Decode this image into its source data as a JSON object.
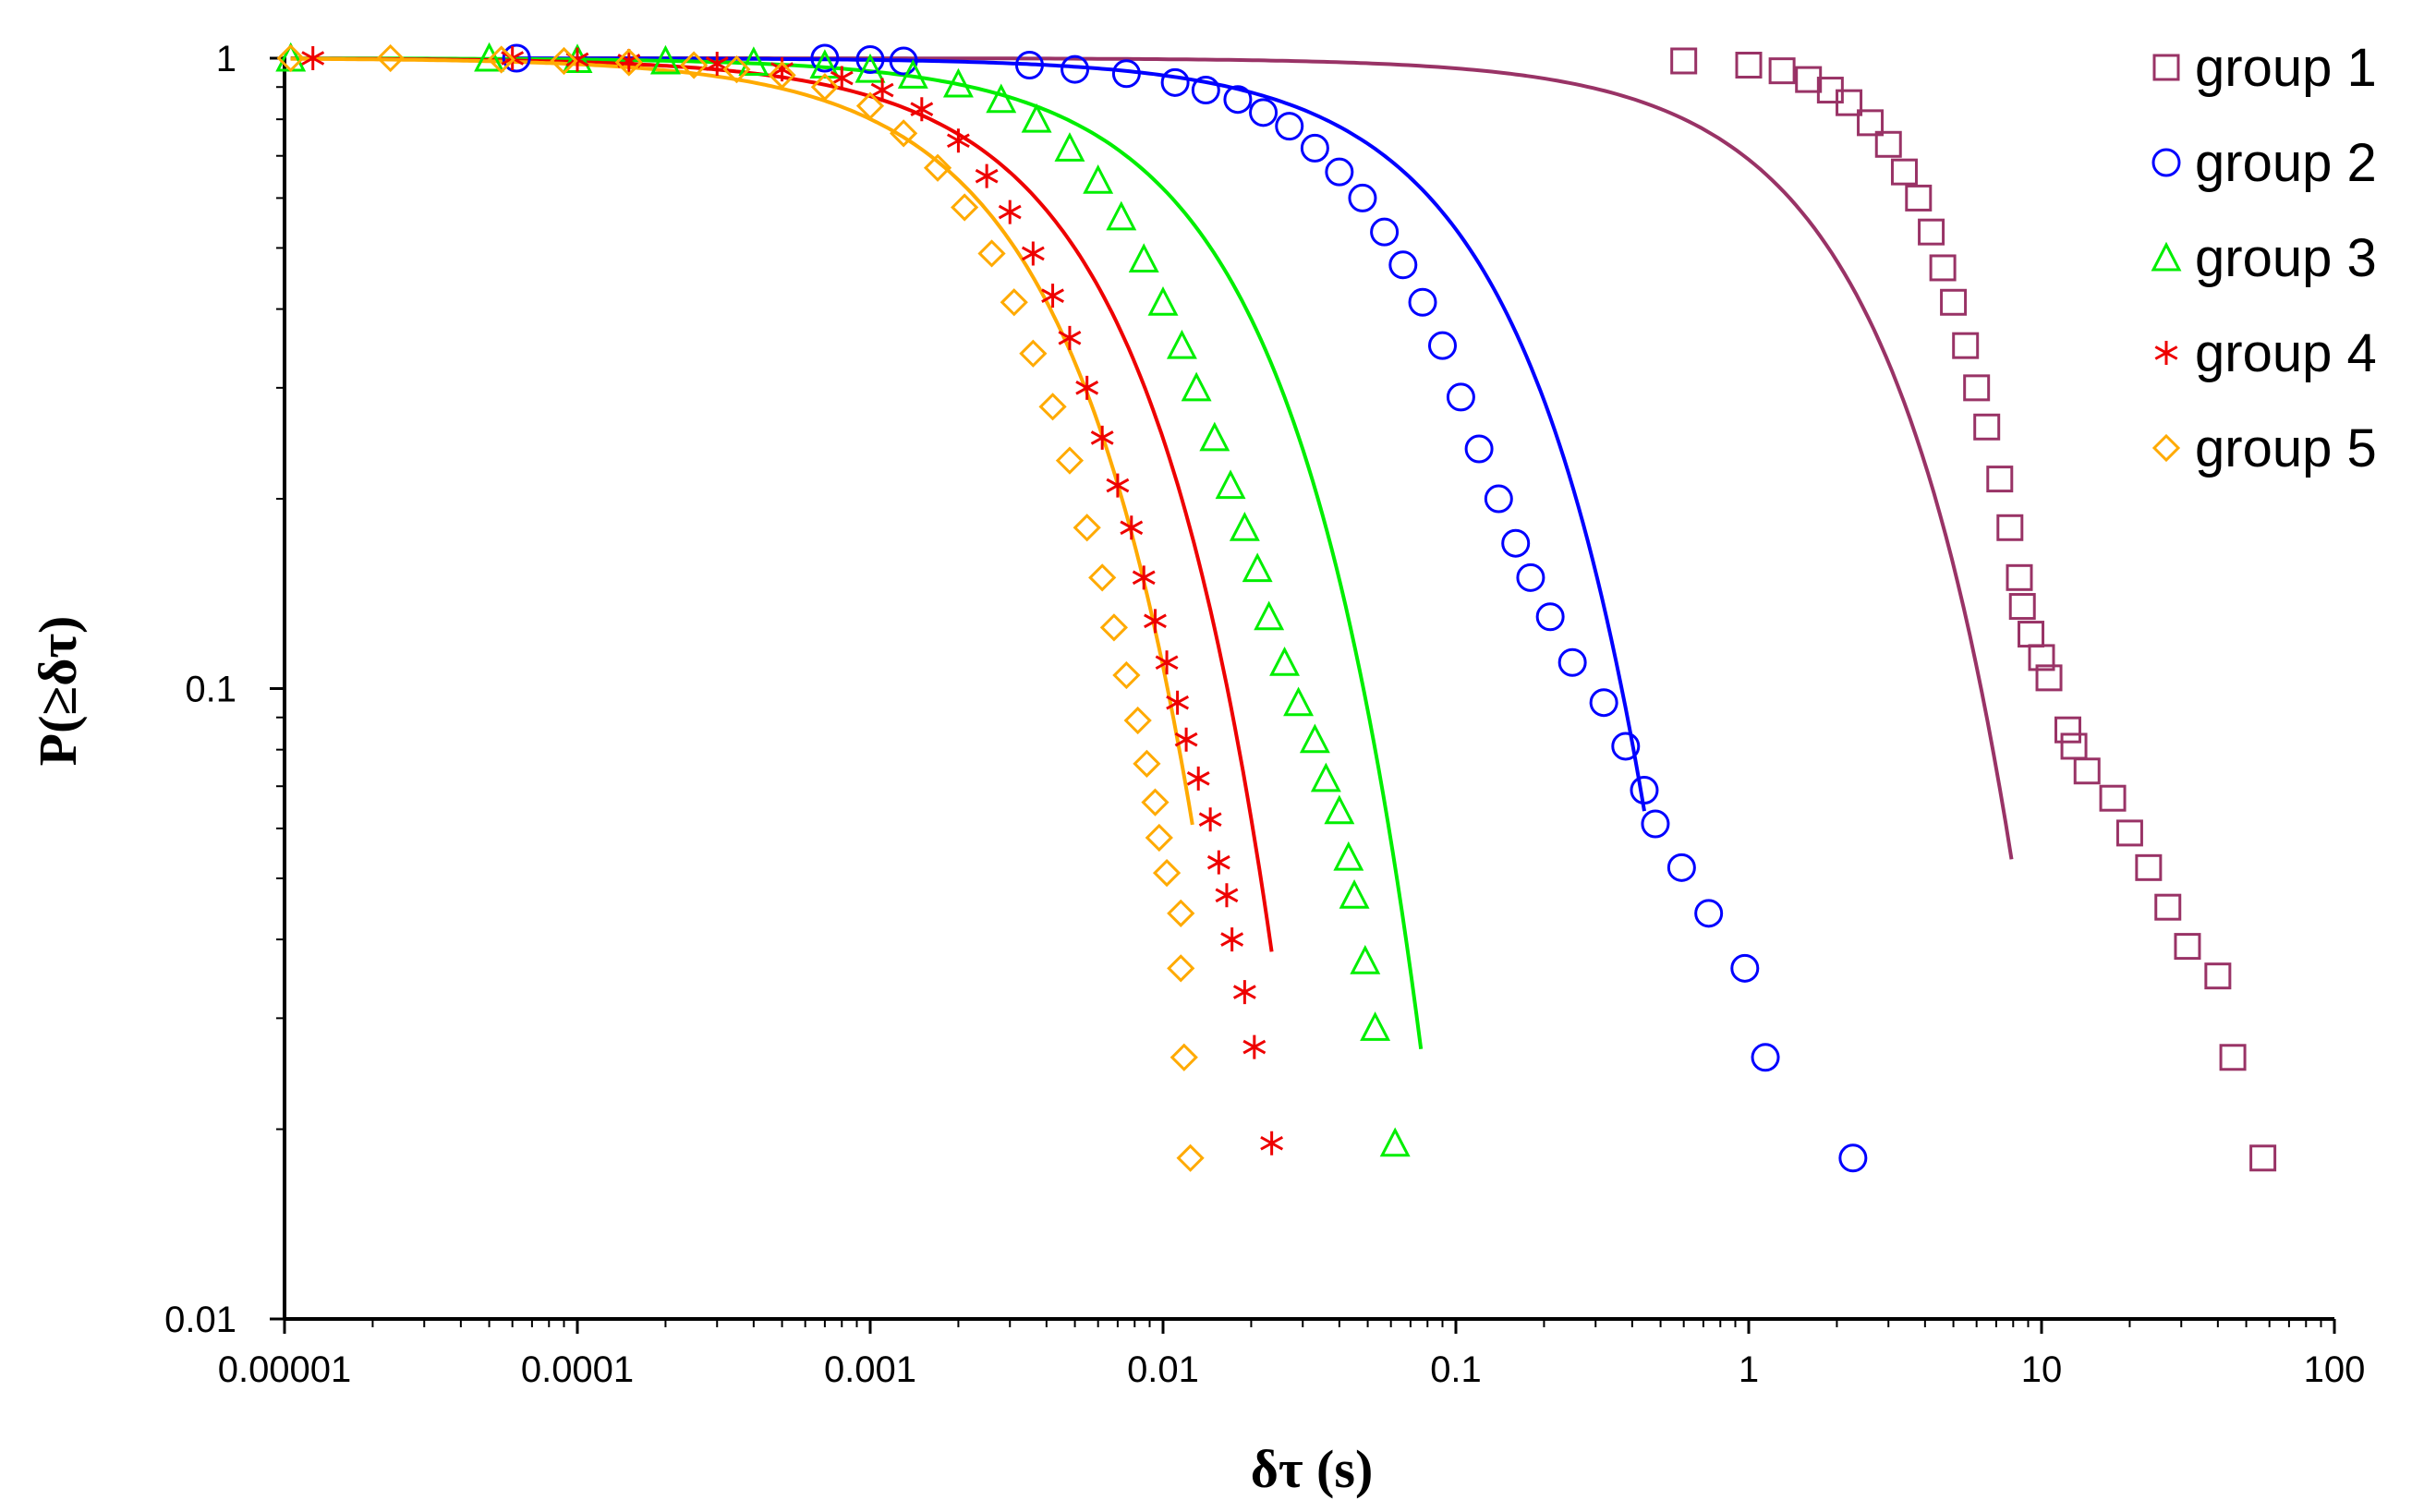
{
  "chart_data": {
    "type": "scatter",
    "title": "",
    "xlabel": "δτ (s)",
    "ylabel": "P(≥δτ)",
    "xscale": "log",
    "yscale": "log",
    "xlim": [
      1e-05,
      100
    ],
    "ylim": [
      0.01,
      1
    ],
    "x_tick_labels": [
      "0.00001",
      "0.0001",
      "0.001",
      "0.01",
      "0.1",
      "1",
      "10",
      "100"
    ],
    "x_tick_values": [
      1e-05,
      0.0001,
      0.001,
      0.01,
      0.1,
      1,
      10,
      100
    ],
    "y_tick_labels": [
      "0.01",
      "0.1",
      "1"
    ],
    "y_tick_values": [
      0.01,
      0.1,
      1
    ],
    "grid": false,
    "legend_position": "top-right",
    "series": [
      {
        "name": "group 1",
        "marker": "square",
        "color": "#993366",
        "tau_scale": 2.7,
        "fit_x_range": [
          0.0001,
          7.9
        ],
        "points": [
          [
            0.6,
            0.99
          ],
          [
            1.0,
            0.975
          ],
          [
            1.3,
            0.955
          ],
          [
            1.6,
            0.925
          ],
          [
            1.9,
            0.89
          ],
          [
            2.2,
            0.85
          ],
          [
            2.6,
            0.79
          ],
          [
            3.0,
            0.73
          ],
          [
            3.4,
            0.66
          ],
          [
            3.8,
            0.6
          ],
          [
            4.2,
            0.53
          ],
          [
            4.6,
            0.465
          ],
          [
            5.0,
            0.41
          ],
          [
            5.5,
            0.35
          ],
          [
            6.0,
            0.3
          ],
          [
            6.5,
            0.26
          ],
          [
            7.2,
            0.215
          ],
          [
            7.8,
            0.18
          ],
          [
            8.4,
            0.15
          ],
          [
            8.6,
            0.135
          ],
          [
            9.2,
            0.122
          ],
          [
            10.0,
            0.112
          ],
          [
            10.6,
            0.104
          ],
          [
            12.3,
            0.086
          ],
          [
            12.9,
            0.081
          ],
          [
            14.3,
            0.074
          ],
          [
            17.5,
            0.067
          ],
          [
            20.0,
            0.059
          ],
          [
            23.2,
            0.052
          ],
          [
            27.0,
            0.045
          ],
          [
            31.5,
            0.039
          ],
          [
            40.0,
            0.035
          ],
          [
            45.0,
            0.026
          ],
          [
            57.0,
            0.018
          ]
        ]
      },
      {
        "name": "group 2",
        "marker": "circle",
        "color": "#0000ff",
        "tau_scale": 0.16,
        "fit_x_range": [
          6e-05,
          0.44
        ],
        "points": [
          [
            6.2e-05,
            1.0
          ],
          [
            0.0007,
            1.0
          ],
          [
            0.001,
            0.995
          ],
          [
            0.0013,
            0.99
          ],
          [
            0.0035,
            0.975
          ],
          [
            0.005,
            0.96
          ],
          [
            0.0075,
            0.945
          ],
          [
            0.011,
            0.915
          ],
          [
            0.014,
            0.89
          ],
          [
            0.018,
            0.86
          ],
          [
            0.022,
            0.82
          ],
          [
            0.027,
            0.78
          ],
          [
            0.033,
            0.72
          ],
          [
            0.04,
            0.66
          ],
          [
            0.048,
            0.6
          ],
          [
            0.057,
            0.53
          ],
          [
            0.066,
            0.47
          ],
          [
            0.077,
            0.41
          ],
          [
            0.09,
            0.35
          ],
          [
            0.104,
            0.29
          ],
          [
            0.12,
            0.24
          ],
          [
            0.14,
            0.2
          ],
          [
            0.16,
            0.17
          ],
          [
            0.18,
            0.15
          ],
          [
            0.21,
            0.13
          ],
          [
            0.25,
            0.11
          ],
          [
            0.32,
            0.095
          ],
          [
            0.38,
            0.081
          ],
          [
            0.44,
            0.069
          ],
          [
            0.48,
            0.061
          ],
          [
            0.59,
            0.052
          ],
          [
            0.73,
            0.044
          ],
          [
            0.97,
            0.036
          ],
          [
            1.14,
            0.026
          ],
          [
            2.27,
            0.018
          ]
        ]
      },
      {
        "name": "group 3",
        "marker": "triangle",
        "color": "#00ee00",
        "tau_scale": 0.021,
        "fit_x_range": [
          1.05e-05,
          0.076
        ],
        "points": [
          [
            1.05e-05,
            1.0
          ],
          [
            5e-05,
            1.0
          ],
          [
            0.0001,
            0.995
          ],
          [
            0.0002,
            0.99
          ],
          [
            0.0004,
            0.985
          ],
          [
            0.0007,
            0.975
          ],
          [
            0.001,
            0.96
          ],
          [
            0.0014,
            0.94
          ],
          [
            0.002,
            0.91
          ],
          [
            0.0028,
            0.86
          ],
          [
            0.0037,
            0.8
          ],
          [
            0.0048,
            0.72
          ],
          [
            0.006,
            0.64
          ],
          [
            0.0072,
            0.56
          ],
          [
            0.0086,
            0.48
          ],
          [
            0.01,
            0.41
          ],
          [
            0.0116,
            0.35
          ],
          [
            0.013,
            0.3
          ],
          [
            0.015,
            0.25
          ],
          [
            0.017,
            0.21
          ],
          [
            0.019,
            0.18
          ],
          [
            0.021,
            0.155
          ],
          [
            0.023,
            0.13
          ],
          [
            0.026,
            0.11
          ],
          [
            0.029,
            0.095
          ],
          [
            0.033,
            0.083
          ],
          [
            0.036,
            0.072
          ],
          [
            0.04,
            0.064
          ],
          [
            0.043,
            0.054
          ],
          [
            0.045,
            0.047
          ],
          [
            0.049,
            0.037
          ],
          [
            0.053,
            0.029
          ],
          [
            0.062,
            0.019
          ]
        ]
      },
      {
        "name": "group 4",
        "marker": "asterisk",
        "color": "#ee0000",
        "tau_scale": 0.0072,
        "fit_x_range": [
          1.05e-05,
          0.0235
        ],
        "points": [
          [
            1.25e-05,
            1.0
          ],
          [
            6e-05,
            1.0
          ],
          [
            0.0001,
            0.995
          ],
          [
            0.00015,
            0.99
          ],
          [
            0.0003,
            0.98
          ],
          [
            0.0005,
            0.96
          ],
          [
            0.0008,
            0.93
          ],
          [
            0.0011,
            0.89
          ],
          [
            0.0015,
            0.83
          ],
          [
            0.002,
            0.74
          ],
          [
            0.0025,
            0.65
          ],
          [
            0.003,
            0.57
          ],
          [
            0.0036,
            0.49
          ],
          [
            0.0042,
            0.42
          ],
          [
            0.0048,
            0.36
          ],
          [
            0.0055,
            0.3
          ],
          [
            0.0062,
            0.25
          ],
          [
            0.007,
            0.21
          ],
          [
            0.0078,
            0.18
          ],
          [
            0.0086,
            0.15
          ],
          [
            0.0094,
            0.128
          ],
          [
            0.0103,
            0.11
          ],
          [
            0.0112,
            0.095
          ],
          [
            0.012,
            0.083
          ],
          [
            0.0132,
            0.072
          ],
          [
            0.0145,
            0.062
          ],
          [
            0.0155,
            0.053
          ],
          [
            0.0165,
            0.047
          ],
          [
            0.0172,
            0.04
          ],
          [
            0.019,
            0.033
          ],
          [
            0.0205,
            0.027
          ],
          [
            0.0235,
            0.019
          ]
        ]
      },
      {
        "name": "group 5",
        "marker": "diamond",
        "color": "#ffaa00",
        "tau_scale": 0.0045,
        "fit_x_range": [
          1.05e-05,
          0.0126
        ],
        "points": [
          [
            1.05e-05,
            1.0
          ],
          [
            2.3e-05,
            1.0
          ],
          [
            5.5e-05,
            0.995
          ],
          [
            9e-05,
            0.99
          ],
          [
            0.00015,
            0.985
          ],
          [
            0.00025,
            0.975
          ],
          [
            0.00035,
            0.96
          ],
          [
            0.0005,
            0.94
          ],
          [
            0.0007,
            0.9
          ],
          [
            0.001,
            0.84
          ],
          [
            0.0013,
            0.76
          ],
          [
            0.0017,
            0.67
          ],
          [
            0.0021,
            0.58
          ],
          [
            0.0026,
            0.49
          ],
          [
            0.0031,
            0.41
          ],
          [
            0.0036,
            0.34
          ],
          [
            0.0042,
            0.28
          ],
          [
            0.0048,
            0.23
          ],
          [
            0.0055,
            0.18
          ],
          [
            0.0062,
            0.15
          ],
          [
            0.0068,
            0.125
          ],
          [
            0.0075,
            0.105
          ],
          [
            0.0082,
            0.089
          ],
          [
            0.0088,
            0.076
          ],
          [
            0.0094,
            0.066
          ],
          [
            0.0097,
            0.058
          ],
          [
            0.0103,
            0.051
          ],
          [
            0.0115,
            0.044
          ],
          [
            0.0115,
            0.036
          ],
          [
            0.0118,
            0.026
          ],
          [
            0.0124,
            0.018
          ]
        ]
      }
    ]
  }
}
